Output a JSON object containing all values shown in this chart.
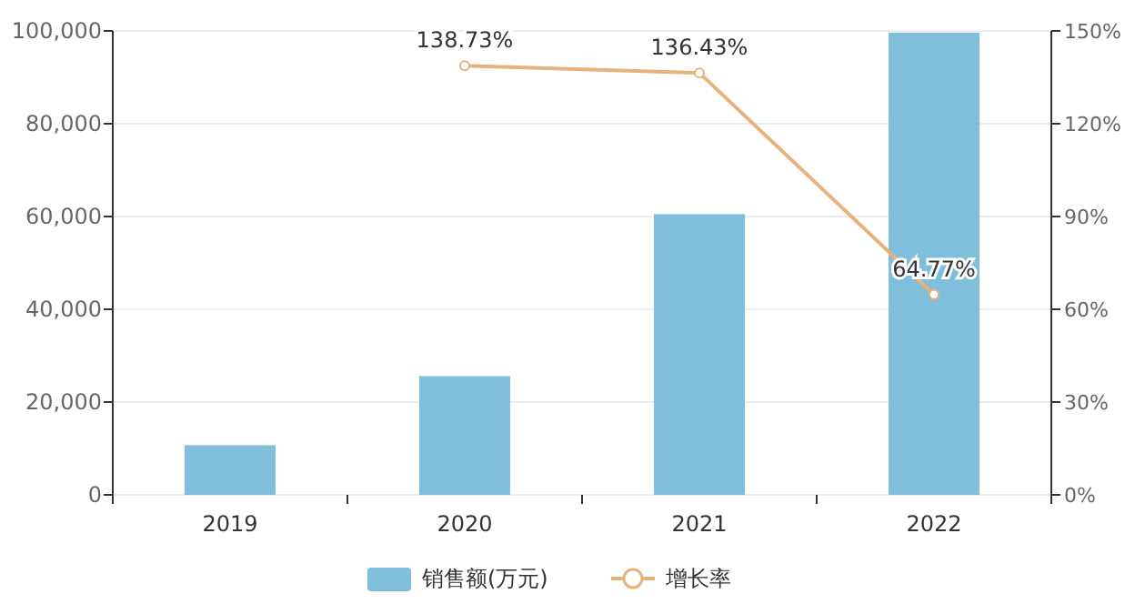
{
  "chart_data": {
    "type": "bar",
    "categories": [
      "2019",
      "2020",
      "2021",
      "2022"
    ],
    "series": [
      {
        "name": "销售额(万元)",
        "color": "#7fbfdb",
        "values": [
          10700,
          25600,
          60500,
          99600
        ]
      },
      {
        "name": "增长率",
        "type": "line",
        "axis": "y2",
        "color": "#e8b27c",
        "values": [
          null,
          138.73,
          136.43,
          64.77
        ],
        "value_labels": [
          null,
          "138.73%",
          "136.43%",
          "64.77%"
        ]
      }
    ],
    "ylim": [
      0,
      100000
    ],
    "yticks": [
      {
        "value": 0,
        "label": "0"
      },
      {
        "value": 20000,
        "label": "20,000"
      },
      {
        "value": 40000,
        "label": "40,000"
      },
      {
        "value": 60000,
        "label": "60,000"
      },
      {
        "value": 80000,
        "label": "80,000"
      },
      {
        "value": 100000,
        "label": "100,000"
      }
    ],
    "y2lim": [
      0,
      150
    ],
    "y2ticks": [
      {
        "value": 0,
        "label": "0%"
      },
      {
        "value": 30,
        "label": "30%"
      },
      {
        "value": 60,
        "label": "60%"
      },
      {
        "value": 90,
        "label": "90%"
      },
      {
        "value": 120,
        "label": "120%"
      },
      {
        "value": 150,
        "label": "150%"
      }
    ],
    "grid": "y",
    "legend": "bottom",
    "marker": "circle"
  }
}
